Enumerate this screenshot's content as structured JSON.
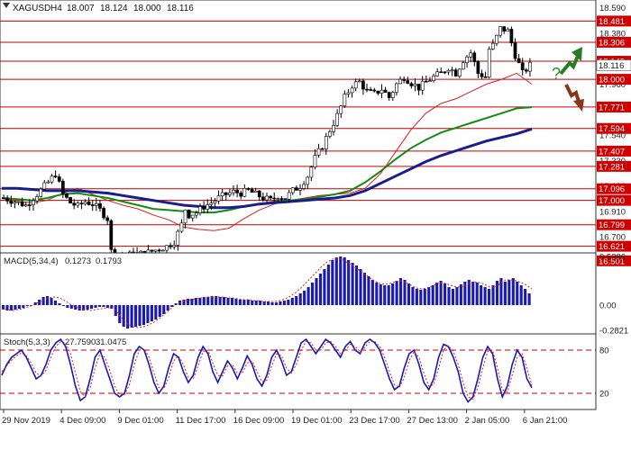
{
  "chart_data": {
    "type": "candlestick",
    "symbol": "XAGUSD",
    "timeframe": "H4",
    "ohlc_header": {
      "open": "18.007",
      "high": "18.124",
      "low": "18.000",
      "close": "18.116"
    },
    "y_ticks": [
      "18.590",
      "18.380",
      "18.170",
      "17.960",
      "17.750",
      "17.540",
      "17.330",
      "17.120",
      "16.910",
      "16.700",
      "16.490"
    ],
    "ylim": [
      16.44,
      18.64
    ],
    "price_levels": [
      "18.481",
      "18.306",
      "18.149",
      "18.000",
      "17.771",
      "17.594",
      "17.407",
      "17.281",
      "17.096",
      "17.000",
      "16.799",
      "16.621",
      "16.501"
    ],
    "current_price_label": "18.116",
    "x_labels": [
      "29 Nov 2019",
      "4 Dec 09:00",
      "9 Dec 01:00",
      "11 Dec 17:00",
      "16 Dec 09:00",
      "19 Dec 01:00",
      "23 Dec 17:00",
      "27 Dec 13:00",
      "2 Jan 05:00",
      "6 Jan 21:00"
    ],
    "close_path": [
      [
        0,
        17.02
      ],
      [
        3,
        16.99
      ],
      [
        6,
        16.96
      ],
      [
        9,
        17.05
      ],
      [
        12,
        17.15
      ],
      [
        14,
        17.22
      ],
      [
        16,
        17.05
      ],
      [
        18,
        16.98
      ],
      [
        20,
        16.95
      ],
      [
        22,
        16.99
      ],
      [
        24,
        16.97
      ],
      [
        26,
        16.92
      ],
      [
        28,
        16.85
      ],
      [
        29,
        16.58
      ],
      [
        30,
        16.54
      ],
      [
        32,
        16.53
      ],
      [
        34,
        16.55
      ],
      [
        36,
        16.56
      ],
      [
        38,
        16.56
      ],
      [
        40,
        16.58
      ],
      [
        42,
        16.6
      ],
      [
        44,
        16.62
      ],
      [
        46,
        16.66
      ],
      [
        48,
        16.8
      ],
      [
        49,
        16.93
      ],
      [
        50,
        16.88
      ],
      [
        52,
        16.9
      ],
      [
        54,
        16.95
      ],
      [
        56,
        16.98
      ],
      [
        58,
        17.02
      ],
      [
        60,
        17.05
      ],
      [
        62,
        17.07
      ],
      [
        64,
        17.06
      ],
      [
        66,
        17.08
      ],
      [
        68,
        17.05
      ],
      [
        70,
        17.02
      ],
      [
        72,
        17.0
      ],
      [
        74,
        17.04
      ],
      [
        76,
        17.02
      ],
      [
        78,
        17.08
      ],
      [
        80,
        17.12
      ],
      [
        82,
        17.2
      ],
      [
        84,
        17.35
      ],
      [
        86,
        17.45
      ],
      [
        88,
        17.58
      ],
      [
        90,
        17.7
      ],
      [
        92,
        17.85
      ],
      [
        94,
        17.95
      ],
      [
        96,
        17.98
      ],
      [
        98,
        17.9
      ],
      [
        100,
        17.88
      ],
      [
        102,
        17.92
      ],
      [
        104,
        17.85
      ],
      [
        106,
        17.96
      ],
      [
        108,
        18.02
      ],
      [
        110,
        17.97
      ],
      [
        112,
        17.93
      ],
      [
        114,
        17.98
      ],
      [
        116,
        18.02
      ],
      [
        118,
        18.05
      ],
      [
        120,
        18.1
      ],
      [
        122,
        18.05
      ],
      [
        124,
        18.16
      ],
      [
        126,
        18.22
      ],
      [
        128,
        18.05
      ],
      [
        130,
        18.02
      ],
      [
        131,
        18.25
      ],
      [
        132,
        18.28
      ],
      [
        134,
        18.42
      ],
      [
        136,
        18.4
      ],
      [
        138,
        18.2
      ],
      [
        140,
        18.05
      ],
      [
        142,
        18.116
      ]
    ],
    "series": [
      {
        "color": "#d81e1e",
        "values": [
          17.02,
          16.99,
          16.98,
          17.0,
          17.06,
          17.1,
          17.05,
          17.0,
          16.96,
          16.93,
          16.88,
          16.84,
          16.78,
          16.76,
          16.75,
          16.77,
          16.85,
          16.92,
          16.97,
          17.0,
          17.02,
          17.04,
          17.05,
          17.06,
          17.1,
          17.22,
          17.4,
          17.58,
          17.72,
          17.8,
          17.84,
          17.9,
          17.96,
          18.0,
          18.05,
          17.96
        ]
      },
      {
        "color": "#138a13",
        "values": [
          17.02,
          17.01,
          17.0,
          17.02,
          17.05,
          17.06,
          17.04,
          17.02,
          16.99,
          16.96,
          16.93,
          16.92,
          16.91,
          16.9,
          16.9,
          16.92,
          16.95,
          16.97,
          16.99,
          17.0,
          17.01,
          17.03,
          17.05,
          17.08,
          17.15,
          17.24,
          17.34,
          17.43,
          17.5,
          17.56,
          17.6,
          17.64,
          17.68,
          17.72,
          17.76,
          17.77
        ]
      },
      {
        "color": "#1a1d8c",
        "values": [
          17.1,
          17.1,
          17.09,
          17.08,
          17.08,
          17.08,
          17.07,
          17.06,
          17.04,
          17.02,
          17.0,
          16.98,
          16.96,
          16.95,
          16.94,
          16.94,
          16.95,
          16.97,
          16.98,
          16.99,
          17.0,
          17.01,
          17.02,
          17.04,
          17.08,
          17.14,
          17.2,
          17.26,
          17.32,
          17.37,
          17.41,
          17.45,
          17.49,
          17.52,
          17.55,
          17.59
        ]
      }
    ],
    "macd": {
      "label": "MACD(5,34,4)",
      "main": "0.1273",
      "signal": "0.1793",
      "y_ticks": [
        "0.5386",
        "0.00",
        "-0.2821"
      ],
      "ylim": [
        -0.3,
        0.56
      ],
      "values": [
        -0.05,
        -0.06,
        -0.06,
        -0.05,
        -0.04,
        -0.03,
        -0.01,
        0.0,
        0.03,
        0.06,
        0.09,
        0.1,
        0.08,
        0.05,
        0.02,
        -0.01,
        -0.03,
        -0.04,
        -0.05,
        -0.06,
        -0.06,
        -0.05,
        -0.04,
        -0.03,
        -0.02,
        -0.02,
        -0.03,
        -0.04,
        -0.12,
        -0.2,
        -0.24,
        -0.26,
        -0.25,
        -0.24,
        -0.23,
        -0.22,
        -0.2,
        -0.18,
        -0.16,
        -0.13,
        -0.1,
        -0.06,
        -0.02,
        0.02,
        0.05,
        0.06,
        0.07,
        0.07,
        0.08,
        0.08,
        0.09,
        0.09,
        0.1,
        0.1,
        0.09,
        0.09,
        0.08,
        0.08,
        0.07,
        0.06,
        0.06,
        0.06,
        0.05,
        0.05,
        0.05,
        0.04,
        0.04,
        0.03,
        0.03,
        0.04,
        0.05,
        0.06,
        0.08,
        0.1,
        0.13,
        0.16,
        0.2,
        0.25,
        0.3,
        0.35,
        0.4,
        0.45,
        0.5,
        0.53,
        0.54,
        0.53,
        0.5,
        0.47,
        0.44,
        0.4,
        0.36,
        0.32,
        0.28,
        0.25,
        0.23,
        0.22,
        0.22,
        0.24,
        0.27,
        0.3,
        0.28,
        0.24,
        0.2,
        0.18,
        0.17,
        0.18,
        0.2,
        0.22,
        0.25,
        0.27,
        0.24,
        0.2,
        0.18,
        0.2,
        0.23,
        0.26,
        0.28,
        0.26,
        0.25,
        0.22,
        0.2,
        0.18,
        0.22,
        0.27,
        0.3,
        0.26,
        0.28,
        0.3,
        0.26,
        0.22,
        0.18,
        0.13
      ],
      "signal_values": [
        -0.04,
        -0.05,
        -0.06,
        -0.05,
        -0.04,
        -0.02,
        0.0,
        0.03,
        0.06,
        0.08,
        0.09,
        0.08,
        0.05,
        0.01,
        -0.02,
        -0.04,
        -0.05,
        -0.06,
        -0.05,
        -0.04,
        -0.03,
        -0.03,
        -0.08,
        -0.15,
        -0.21,
        -0.24,
        -0.25,
        -0.24,
        -0.22,
        -0.19,
        -0.15,
        -0.1,
        -0.05,
        0.0,
        0.03,
        0.05,
        0.06,
        0.07,
        0.08,
        0.09,
        0.09,
        0.09,
        0.09,
        0.08,
        0.08,
        0.07,
        0.06,
        0.06,
        0.05,
        0.05,
        0.04,
        0.04,
        0.04,
        0.05,
        0.07,
        0.1,
        0.14,
        0.19,
        0.25,
        0.31,
        0.37,
        0.43,
        0.48,
        0.51,
        0.52,
        0.5,
        0.47,
        0.43,
        0.39,
        0.35,
        0.31,
        0.27,
        0.24,
        0.23,
        0.24,
        0.26,
        0.27,
        0.25,
        0.22,
        0.19,
        0.18,
        0.19,
        0.21,
        0.24,
        0.25,
        0.23,
        0.21,
        0.2,
        0.21,
        0.24,
        0.26,
        0.25,
        0.23,
        0.2,
        0.2,
        0.24,
        0.28,
        0.28,
        0.27,
        0.25,
        0.22,
        0.18
      ]
    },
    "stoch": {
      "label": "Stoch(5,3,3)",
      "k": "27.7590",
      "d": "31.0475",
      "levels": [
        "80",
        "20"
      ],
      "ylim": [
        0,
        100
      ],
      "k_values": [
        45,
        60,
        70,
        75,
        80,
        70,
        55,
        40,
        45,
        60,
        80,
        90,
        95,
        85,
        60,
        30,
        10,
        15,
        40,
        70,
        80,
        60,
        40,
        20,
        15,
        20,
        45,
        75,
        85,
        80,
        60,
        35,
        20,
        30,
        55,
        75,
        70,
        50,
        35,
        45,
        70,
        85,
        75,
        50,
        35,
        50,
        65,
        55,
        40,
        55,
        72,
        60,
        40,
        30,
        45,
        70,
        80,
        65,
        45,
        50,
        70,
        90,
        95,
        85,
        75,
        85,
        95,
        90,
        80,
        70,
        85,
        92,
        80,
        75,
        90,
        95,
        90,
        80,
        60,
        40,
        25,
        30,
        55,
        75,
        80,
        60,
        35,
        25,
        40,
        70,
        88,
        85,
        70,
        50,
        20,
        8,
        15,
        40,
        70,
        85,
        75,
        40,
        15,
        30,
        60,
        80,
        70,
        40,
        27.8
      ],
      "d_values": [
        50,
        58,
        66,
        72,
        76,
        72,
        62,
        48,
        44,
        52,
        70,
        85,
        92,
        90,
        75,
        48,
        22,
        15,
        28,
        55,
        75,
        70,
        52,
        30,
        18,
        18,
        32,
        60,
        80,
        82,
        70,
        48,
        28,
        26,
        42,
        65,
        72,
        60,
        42,
        40,
        58,
        78,
        80,
        62,
        45,
        44,
        58,
        60,
        48,
        48,
        62,
        65,
        50,
        36,
        38,
        58,
        75,
        72,
        55,
        48,
        60,
        80,
        92,
        90,
        80,
        80,
        90,
        92,
        85,
        75,
        80,
        88,
        85,
        78,
        84,
        92,
        92,
        85,
        70,
        50,
        32,
        28,
        42,
        65,
        78,
        70,
        48,
        30,
        32,
        55,
        80,
        86,
        78,
        60,
        35,
        15,
        12,
        28,
        55,
        78,
        80,
        55,
        25,
        22,
        45,
        70,
        75,
        55,
        31
      ]
    }
  },
  "annotations": {
    "question_mark": "?"
  }
}
